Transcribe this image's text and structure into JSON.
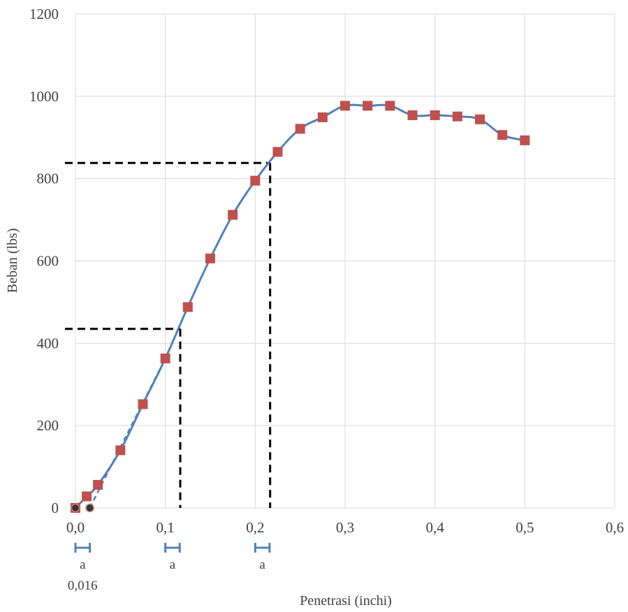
{
  "chart_data": {
    "type": "line",
    "title": "",
    "xlabel": "Penetrasi (inchi)",
    "ylabel": "Beban (lbs)",
    "xlim": [
      0,
      0.6
    ],
    "ylim": [
      0,
      1200
    ],
    "x_ticks": [
      {
        "value": 0.0,
        "label": "0,0"
      },
      {
        "value": 0.1,
        "label": "0,1"
      },
      {
        "value": 0.2,
        "label": "0,2"
      },
      {
        "value": 0.3,
        "label": "0,3"
      },
      {
        "value": 0.4,
        "label": "0,4"
      },
      {
        "value": 0.5,
        "label": "0,5"
      },
      {
        "value": 0.6,
        "label": "0,6"
      }
    ],
    "y_ticks": [
      {
        "value": 0,
        "label": "0"
      },
      {
        "value": 200,
        "label": "200"
      },
      {
        "value": 400,
        "label": "400"
      },
      {
        "value": 600,
        "label": "600"
      },
      {
        "value": 800,
        "label": "800"
      },
      {
        "value": 1000,
        "label": "1000"
      },
      {
        "value": 1200,
        "label": "1200"
      }
    ],
    "grid": true,
    "legend": "none",
    "series": [
      {
        "color": "#4f81bd",
        "marker": "square",
        "marker_color": "#c0504d",
        "x": [
          0,
          0.0125,
          0.025,
          0.05,
          0.075,
          0.1,
          0.125,
          0.15,
          0.175,
          0.2,
          0.225,
          0.25,
          0.275,
          0.3,
          0.325,
          0.35,
          0.375,
          0.4,
          0.425,
          0.45,
          0.475,
          0.5
        ],
        "values": [
          0,
          28,
          56,
          140,
          252,
          363,
          488,
          606,
          712,
          795,
          865,
          921,
          949,
          977,
          977,
          977,
          954,
          954,
          951,
          944,
          906,
          893
        ]
      },
      {
        "color": "#4f81bd",
        "dashed": true,
        "marker": "none",
        "x": [
          0.016,
          0.1
        ],
        "values": [
          0,
          363
        ]
      }
    ],
    "correction_points": [
      {
        "x": 0,
        "value": 0,
        "marker": "circle",
        "color": "#1f3864",
        "edge": "#ed7d31"
      },
      {
        "x": 0.016,
        "value": 0,
        "marker": "circle",
        "color": "#1f3864",
        "edge": "#ed7d31"
      }
    ],
    "reference_lines": [
      {
        "x": 0.1166,
        "value": 435,
        "color": "#000000",
        "style": "dashed"
      },
      {
        "x": 0.2166,
        "value": 838,
        "color": "#000000",
        "style": "dashed"
      }
    ],
    "offset_markers": [
      {
        "x_start": 0.0,
        "x_end": 0.016,
        "label": "a",
        "sublabel": "0,016"
      },
      {
        "x_start": 0.1,
        "x_end": 0.116,
        "label": "a"
      },
      {
        "x_start": 0.2,
        "x_end": 0.216,
        "label": "a"
      }
    ]
  }
}
